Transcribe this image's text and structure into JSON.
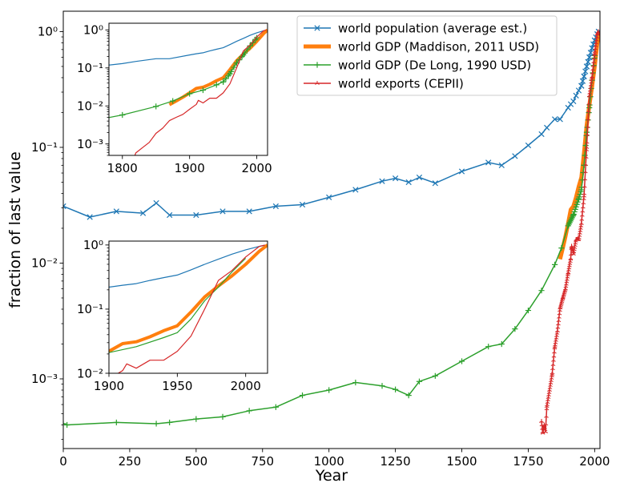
{
  "chart_data": [
    {
      "id": "main",
      "type": "line",
      "xlabel": "Year",
      "ylabel": "fraction of last value",
      "xlim": [
        0,
        2020
      ],
      "ylim": [
        0.00025,
        1.5
      ],
      "yscale": "log",
      "xticks": [
        0,
        250,
        500,
        750,
        1000,
        1250,
        1500,
        1750,
        2000
      ],
      "xtick_labels": [
        "0",
        "250",
        "500",
        "750",
        "1000",
        "1250",
        "1500",
        "1750",
        "2000"
      ],
      "yticks": [
        0.001,
        0.01,
        0.1,
        1
      ],
      "ytick_labels": [
        "10⁻³",
        "10⁻²",
        "10⁻¹",
        "10⁰"
      ],
      "legend": "top-center",
      "series": [
        {
          "name": "world population (average est.)",
          "color": "#1f77b4",
          "marker": "x",
          "x": [
            0,
            100,
            200,
            300,
            350,
            400,
            500,
            600,
            700,
            800,
            900,
            1000,
            1100,
            1200,
            1250,
            1300,
            1340,
            1400,
            1500,
            1600,
            1650,
            1700,
            1750,
            1800,
            1820,
            1850,
            1870,
            1900,
            1910,
            1920,
            1930,
            1940,
            1950,
            1960,
            1970,
            1980,
            1990,
            2000,
            2010,
            2015
          ],
          "values": [
            0.031,
            0.025,
            0.028,
            0.027,
            0.033,
            0.026,
            0.026,
            0.028,
            0.028,
            0.031,
            0.032,
            0.037,
            0.043,
            0.051,
            0.054,
            0.05,
            0.055,
            0.049,
            0.062,
            0.074,
            0.07,
            0.084,
            0.104,
            0.13,
            0.148,
            0.175,
            0.175,
            0.22,
            0.236,
            0.25,
            0.28,
            0.31,
            0.34,
            0.41,
            0.5,
            0.6,
            0.72,
            0.84,
            0.95,
            1.0
          ]
        },
        {
          "name": "world GDP (Maddison, 2011 USD)",
          "color": "#ff7f0e",
          "marker": "none",
          "x": [
            1870,
            1880,
            1890,
            1900,
            1910,
            1920,
            1930,
            1940,
            1950,
            1960,
            1970,
            1980,
            1990,
            2000,
            2010,
            2016
          ],
          "values": [
            0.0108,
            0.0135,
            0.017,
            0.022,
            0.029,
            0.031,
            0.037,
            0.046,
            0.055,
            0.09,
            0.155,
            0.23,
            0.33,
            0.5,
            0.8,
            1.0
          ]
        },
        {
          "name": "world GDP (De Long, 1990 USD)",
          "color": "#2ca02c",
          "marker": "+",
          "x": [
            0,
            14,
            200,
            350,
            400,
            500,
            600,
            700,
            800,
            900,
            1000,
            1100,
            1200,
            1250,
            1300,
            1340,
            1400,
            1500,
            1600,
            1650,
            1700,
            1750,
            1800,
            1850,
            1875,
            1900,
            1920,
            1940,
            1950,
            1960,
            1970,
            1980,
            1990,
            2000
          ],
          "values": [
            0.00041,
            0.0004,
            0.00042,
            0.00041,
            0.00042,
            0.00045,
            0.00047,
            0.00053,
            0.00057,
            0.00072,
            0.0008,
            0.00093,
            0.00087,
            0.00081,
            0.00072,
            0.00095,
            0.00106,
            0.00142,
            0.0019,
            0.002,
            0.0027,
            0.0039,
            0.0058,
            0.0097,
            0.0135,
            0.021,
            0.026,
            0.036,
            0.043,
            0.07,
            0.135,
            0.22,
            0.38,
            0.62
          ]
        },
        {
          "name": "world exports (CEPII)",
          "color": "#d62728",
          "marker": "tri_up",
          "x": [
            1800,
            1805,
            1810,
            1815,
            1820,
            1830,
            1840,
            1850,
            1860,
            1870,
            1880,
            1890,
            1900,
            1910,
            1913,
            1920,
            1930,
            1940,
            1950,
            1960,
            1970,
            1980,
            1990,
            2000,
            2010,
            2014
          ],
          "values": [
            0.00043,
            0.00034,
            0.0004,
            0.00035,
            0.00058,
            0.0008,
            0.0011,
            0.0019,
            0.0026,
            0.0041,
            0.005,
            0.006,
            0.0082,
            0.011,
            0.014,
            0.012,
            0.016,
            0.016,
            0.022,
            0.038,
            0.1,
            0.28,
            0.4,
            0.65,
            0.95,
            1.0
          ]
        }
      ]
    },
    {
      "id": "inset_top",
      "type": "line",
      "yscale": "log",
      "xlim": [
        1780,
        2016
      ],
      "ylim": [
        0.0005,
        1.5
      ],
      "xticks": [
        1800,
        1900,
        2000
      ],
      "xtick_labels": [
        "1800",
        "1900",
        "2000"
      ],
      "yticks": [
        0.001,
        0.01,
        0.1,
        1
      ],
      "ytick_labels": [
        "10⁻³",
        "10⁻²",
        "10⁻¹",
        "10⁰"
      ]
    },
    {
      "id": "inset_bottom",
      "type": "line",
      "yscale": "log",
      "xlim": [
        1900,
        2016
      ],
      "ylim": [
        0.01,
        1.15
      ],
      "xticks": [
        1900,
        1950,
        2000
      ],
      "xtick_labels": [
        "1900",
        "1950",
        "2000"
      ],
      "yticks": [
        0.01,
        0.1,
        1
      ],
      "ytick_labels": [
        "10⁻²",
        "10⁻¹",
        "10⁰"
      ]
    }
  ]
}
